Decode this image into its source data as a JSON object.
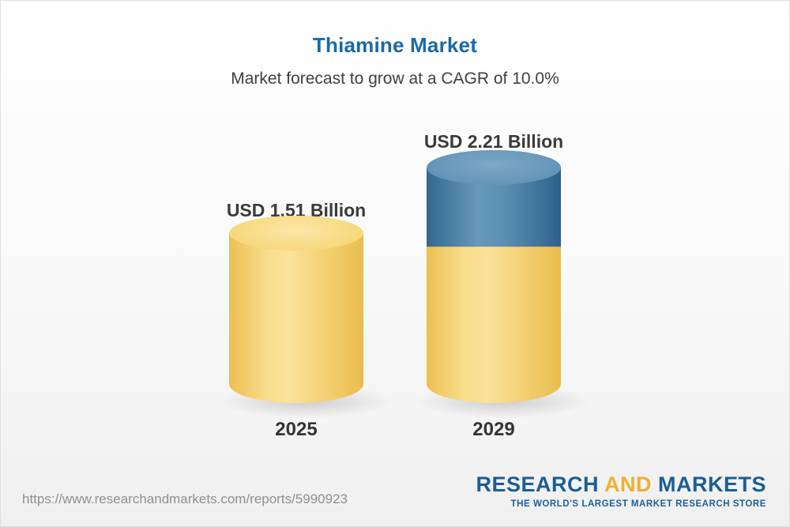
{
  "header": {
    "title": "Thiamine Market",
    "subtitle": "Market forecast to grow at a CAGR of 10.0%"
  },
  "chart_data": {
    "type": "bar",
    "title": "Thiamine Market",
    "subtitle": "Market forecast to grow at a CAGR of 10.0%",
    "unit": "USD Billion",
    "categories": [
      "2025",
      "2029"
    ],
    "values": [
      1.51,
      2.21
    ],
    "value_labels": [
      "USD 1.51 Billion",
      "USD 2.21 Billion"
    ],
    "cagr_percent": 10.0,
    "legend": "none",
    "grid": false,
    "bar_style": "3d-cylinder",
    "colors": {
      "bar_base": "#F5CE6A",
      "bar_growth_segment": "#3E74A0",
      "title": "#1A6AA5",
      "label_text": "#3A3A3A"
    }
  },
  "footer": {
    "url": "https://www.researchandmarkets.com/reports/5990923",
    "logo": {
      "research": "RESEARCH",
      "and": "AND",
      "markets": "MARKETS"
    },
    "tagline": "THE WORLD'S LARGEST MARKET RESEARCH STORE"
  }
}
